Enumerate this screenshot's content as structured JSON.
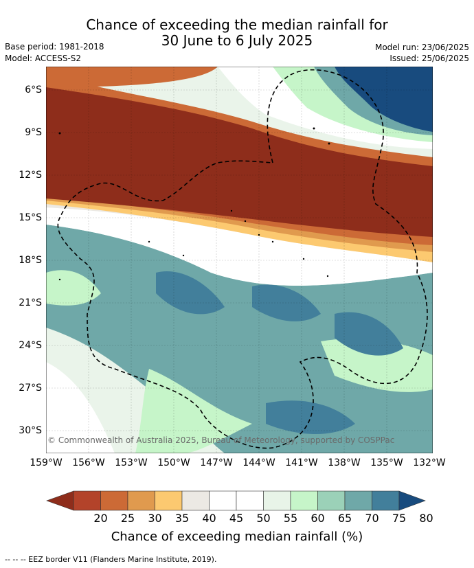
{
  "title": {
    "line1": "Chance of exceeding the median rainfall for",
    "line2": "30 June to 6 July 2025"
  },
  "meta": {
    "base_period": "Base period: 1981-2018",
    "model": "Model: ACCESS-S2",
    "model_run": "Model run: 23/06/2025",
    "issued": "Issued: 25/06/2025"
  },
  "map": {
    "lat_labels": [
      "6°S",
      "9°S",
      "12°S",
      "15°S",
      "18°S",
      "21°S",
      "24°S",
      "27°S",
      "30°S"
    ],
    "lon_labels": [
      "159°W",
      "156°W",
      "153°W",
      "150°W",
      "147°W",
      "144°W",
      "141°W",
      "138°W",
      "135°W",
      "132°W"
    ],
    "copyright": "© Commonwealth of Australia 2025, Bureau of Meteorology, supported by COSPPac"
  },
  "colorbar": {
    "labels": [
      "20",
      "25",
      "30",
      "35",
      "40",
      "45",
      "50",
      "55",
      "60",
      "65",
      "70",
      "75",
      "80"
    ],
    "colors": [
      "#8e2d1b",
      "#b3432a",
      "#cc6a36",
      "#e09a4e",
      "#fcc970",
      "#ece9e4",
      "#ffffff",
      "#ffffff",
      "#e8f4e8",
      "#c6f5c9",
      "#9bd1b8",
      "#6fa8a8",
      "#427f9b",
      "#184b7e"
    ],
    "title": "Chance of exceeding median rainfall (%)"
  },
  "footer": "--  --  -- EEZ border V11 (Flanders Marine Institute, 2019)."
}
